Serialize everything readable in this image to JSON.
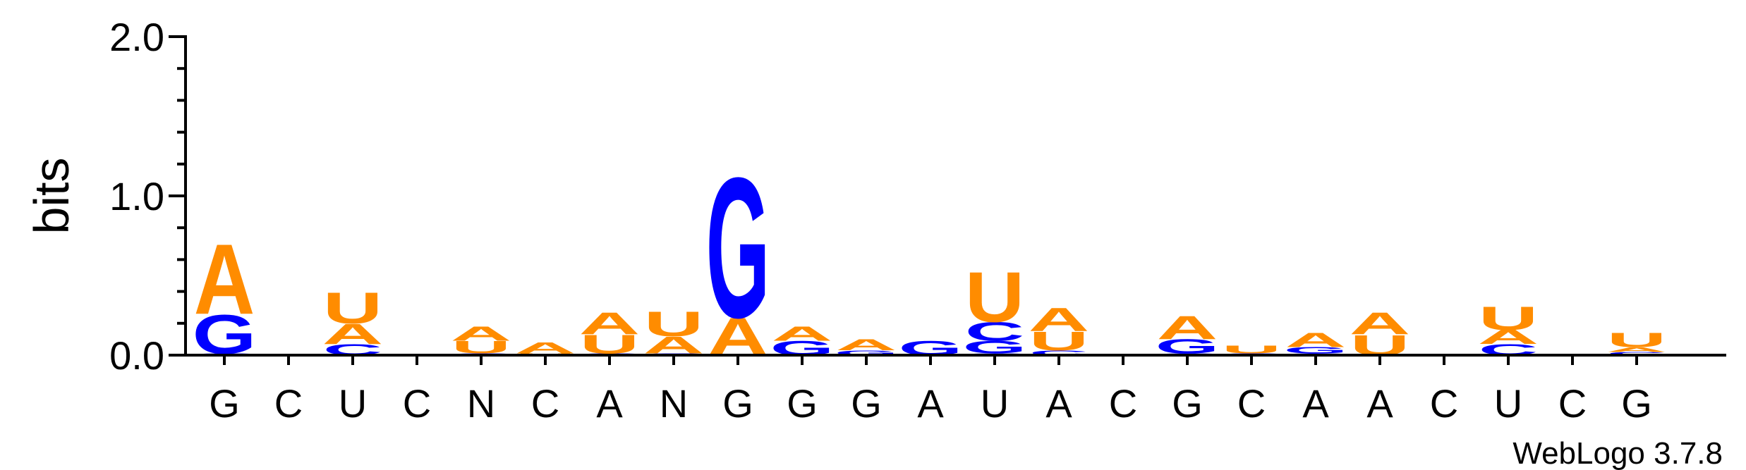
{
  "chart_data": {
    "type": "sequence-logo",
    "ylabel": "bits",
    "ylim": [
      0,
      2.0
    ],
    "yticks": [
      "0.0",
      "1.0",
      "2.0"
    ],
    "positions": [
      "G",
      "C",
      "U",
      "C",
      "N",
      "C",
      "A",
      "N",
      "G",
      "G",
      "G",
      "A",
      "U",
      "A",
      "C",
      "G",
      "C",
      "A",
      "A",
      "C",
      "U",
      "C",
      "G"
    ],
    "colors": {
      "A": "#ff8c00",
      "U": "#ff8c00",
      "G": "#0000ff",
      "C": "#0000ff"
    },
    "stacks": [
      [
        [
          "C",
          0.01
        ],
        [
          "G",
          0.25
        ],
        [
          "A",
          0.45
        ]
      ],
      [],
      [
        [
          "C",
          0.07
        ],
        [
          "A",
          0.13
        ],
        [
          "U",
          0.2
        ]
      ],
      [],
      [
        [
          "C",
          0.01
        ],
        [
          "U",
          0.08
        ],
        [
          "A",
          0.09
        ]
      ],
      [
        [
          "U",
          0.01
        ],
        [
          "A",
          0.07
        ]
      ],
      [
        [
          "C",
          0.01
        ],
        [
          "U",
          0.12
        ],
        [
          "A",
          0.14
        ]
      ],
      [
        [
          "C",
          0.01
        ],
        [
          "A",
          0.11
        ],
        [
          "U",
          0.16
        ]
      ],
      [
        [
          "A",
          0.24
        ],
        [
          "G",
          0.9
        ]
      ],
      [
        [
          "G",
          0.09
        ],
        [
          "A",
          0.09
        ]
      ],
      [
        [
          "G",
          0.03
        ],
        [
          "A",
          0.07
        ]
      ],
      [
        [
          "G",
          0.09
        ]
      ],
      [
        [
          "C",
          0.01
        ],
        [
          "G",
          0.08
        ],
        [
          "C",
          0.12
        ],
        [
          "U",
          0.32
        ]
      ],
      [
        [
          "C",
          0.03
        ],
        [
          "U",
          0.12
        ],
        [
          "A",
          0.15
        ]
      ],
      [],
      [
        [
          "C",
          0.01
        ],
        [
          "G",
          0.09
        ],
        [
          "A",
          0.15
        ]
      ],
      [
        [
          "C",
          0.01
        ],
        [
          "U",
          0.05
        ]
      ],
      [
        [
          "C",
          0.01
        ],
        [
          "G",
          0.04
        ],
        [
          "A",
          0.09
        ]
      ],
      [
        [
          "U",
          0.13
        ],
        [
          "A",
          0.14
        ]
      ],
      [],
      [
        [
          "C",
          0.07
        ],
        [
          "A",
          0.09
        ],
        [
          "U",
          0.15
        ]
      ],
      [],
      [
        [
          "C",
          0.02
        ],
        [
          "A",
          0.03
        ],
        [
          "U",
          0.09
        ]
      ]
    ],
    "credit": "WebLogo 3.7.8"
  }
}
